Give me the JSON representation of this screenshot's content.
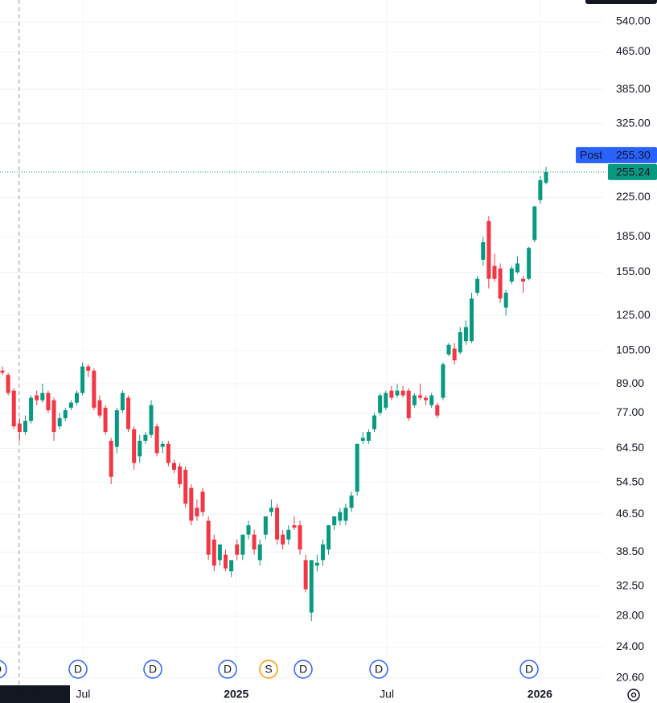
{
  "chart_data": {
    "type": "candlestick",
    "up_color": "#089981",
    "down_color": "#f23645",
    "grid": true,
    "log_scale": true,
    "ylim": [
      20,
      601
    ],
    "yticks": [
      {
        "value": 540,
        "label": "540.00"
      },
      {
        "value": 465,
        "label": "465.00"
      },
      {
        "value": 385,
        "label": "385.00"
      },
      {
        "value": 325,
        "label": "325.00"
      },
      {
        "value": 225,
        "label": "225.00"
      },
      {
        "value": 185,
        "label": "185.00"
      },
      {
        "value": 155,
        "label": "155.00"
      },
      {
        "value": 125,
        "label": "125.00"
      },
      {
        "value": 105,
        "label": "105.00"
      },
      {
        "value": 89,
        "label": "89.00"
      },
      {
        "value": 77,
        "label": "77.00"
      },
      {
        "value": 64.5,
        "label": "64.50"
      },
      {
        "value": 54.5,
        "label": "54.50"
      },
      {
        "value": 46.5,
        "label": "46.50"
      },
      {
        "value": 38.5,
        "label": "38.50"
      },
      {
        "value": 32.5,
        "label": "32.50"
      },
      {
        "value": 28,
        "label": "28.00"
      },
      {
        "value": 24,
        "label": "24.00"
      },
      {
        "value": 20.6,
        "label": "20.60"
      }
    ],
    "xlim": [
      "2024-03-23",
      "2026-03-18"
    ],
    "xticks": [
      {
        "value": "2024-07-01",
        "label": "Jul"
      },
      {
        "value": "2025-01-01",
        "label": "2025"
      },
      {
        "value": "2025-07-01",
        "label": "Jul"
      },
      {
        "value": "2026-01-01",
        "label": "2026"
      }
    ],
    "crosshair": {
      "date": "2024-04-15"
    },
    "post_market": {
      "label": "Post",
      "price": {
        "value": 255.3,
        "label": "255.30"
      }
    },
    "last_price": {
      "value": 255.24,
      "label": "255.24"
    },
    "events": [
      "D",
      "D",
      "D",
      "D",
      "S",
      "D",
      "D",
      "D"
    ],
    "candles": [
      {
        "open": 95,
        "high": 97,
        "low": 93,
        "close": 94
      },
      {
        "open": 93,
        "high": 94,
        "low": 84,
        "close": 85
      },
      {
        "open": 86,
        "high": 87,
        "low": 71,
        "close": 72
      },
      {
        "open": 73,
        "high": 75,
        "low": 67,
        "close": 70
      },
      {
        "open": 70,
        "high": 76,
        "low": 69,
        "close": 74
      },
      {
        "open": 74,
        "high": 84,
        "low": 73,
        "close": 83
      },
      {
        "open": 84,
        "high": 86,
        "low": 80,
        "close": 82
      },
      {
        "open": 82,
        "high": 89,
        "low": 81,
        "close": 85
      },
      {
        "open": 85,
        "high": 86,
        "low": 77,
        "close": 78
      },
      {
        "open": 82,
        "high": 83,
        "low": 67,
        "close": 70
      },
      {
        "open": 72,
        "high": 77,
        "low": 71,
        "close": 75
      },
      {
        "open": 75,
        "high": 79,
        "low": 74,
        "close": 78
      },
      {
        "open": 79,
        "high": 82,
        "low": 78,
        "close": 81
      },
      {
        "open": 81,
        "high": 86,
        "low": 80,
        "close": 85
      },
      {
        "open": 85,
        "high": 99,
        "low": 84,
        "close": 97
      },
      {
        "open": 97,
        "high": 98,
        "low": 92,
        "close": 95
      },
      {
        "open": 95,
        "high": 96,
        "low": 78,
        "close": 79
      },
      {
        "open": 82,
        "high": 84,
        "low": 75,
        "close": 76
      },
      {
        "open": 79,
        "high": 80,
        "low": 69,
        "close": 70
      },
      {
        "open": 67,
        "high": 68,
        "low": 54,
        "close": 56
      },
      {
        "open": 65,
        "high": 79,
        "low": 63,
        "close": 78
      },
      {
        "open": 78,
        "high": 86,
        "low": 77,
        "close": 85
      },
      {
        "open": 83,
        "high": 84,
        "low": 70,
        "close": 71
      },
      {
        "open": 71,
        "high": 72,
        "low": 58,
        "close": 60
      },
      {
        "open": 62,
        "high": 69,
        "low": 60,
        "close": 67
      },
      {
        "open": 67,
        "high": 70,
        "low": 66,
        "close": 69
      },
      {
        "open": 69,
        "high": 82,
        "low": 68,
        "close": 80
      },
      {
        "open": 72,
        "high": 73,
        "low": 62,
        "close": 63
      },
      {
        "open": 65,
        "high": 67,
        "low": 63,
        "close": 66
      },
      {
        "open": 66,
        "high": 67,
        "low": 59,
        "close": 60
      },
      {
        "open": 60,
        "high": 61,
        "low": 57,
        "close": 58
      },
      {
        "open": 59,
        "high": 60,
        "low": 53,
        "close": 54
      },
      {
        "open": 58,
        "high": 59,
        "low": 48,
        "close": 49
      },
      {
        "open": 53,
        "high": 54,
        "low": 44,
        "close": 45
      },
      {
        "open": 48,
        "high": 50,
        "low": 45,
        "close": 46
      },
      {
        "open": 52,
        "high": 53,
        "low": 46,
        "close": 47
      },
      {
        "open": 45,
        "high": 46,
        "low": 37,
        "close": 38
      },
      {
        "open": 41,
        "high": 42,
        "low": 35,
        "close": 36
      },
      {
        "open": 37,
        "high": 40,
        "low": 36,
        "close": 40
      },
      {
        "open": 38,
        "high": 39,
        "low": 35,
        "close": 35.5
      },
      {
        "open": 35,
        "high": 37,
        "low": 34,
        "close": 37
      },
      {
        "open": 40,
        "high": 41,
        "low": 37,
        "close": 38
      },
      {
        "open": 38,
        "high": 42,
        "low": 37,
        "close": 42
      },
      {
        "open": 42,
        "high": 45,
        "low": 41,
        "close": 44
      },
      {
        "open": 42,
        "high": 43,
        "low": 38,
        "close": 39
      },
      {
        "open": 37,
        "high": 41,
        "low": 36,
        "close": 40
      },
      {
        "open": 42,
        "high": 46,
        "low": 41,
        "close": 46
      },
      {
        "open": 47,
        "high": 50,
        "low": 46,
        "close": 48
      },
      {
        "open": 48,
        "high": 49,
        "low": 40,
        "close": 41
      },
      {
        "open": 42,
        "high": 43,
        "low": 39,
        "close": 40
      },
      {
        "open": 41,
        "high": 44,
        "low": 40,
        "close": 43
      },
      {
        "open": 44,
        "high": 46,
        "low": 43,
        "close": 43.5
      },
      {
        "open": 44,
        "high": 45,
        "low": 38,
        "close": 39
      },
      {
        "open": 37,
        "high": 38,
        "low": 31.5,
        "close": 32
      },
      {
        "open": 28.5,
        "high": 37,
        "low": 27.3,
        "close": 37
      },
      {
        "open": 36,
        "high": 38,
        "low": 35,
        "close": 36.5
      },
      {
        "open": 37,
        "high": 41,
        "low": 36,
        "close": 40
      },
      {
        "open": 39,
        "high": 44,
        "low": 38,
        "close": 44
      },
      {
        "open": 44,
        "high": 46,
        "low": 43,
        "close": 46
      },
      {
        "open": 45,
        "high": 48,
        "low": 44,
        "close": 47
      },
      {
        "open": 45,
        "high": 49,
        "low": 44,
        "close": 48
      },
      {
        "open": 48,
        "high": 52,
        "low": 47,
        "close": 51
      },
      {
        "open": 52,
        "high": 66,
        "low": 51,
        "close": 66
      },
      {
        "open": 67,
        "high": 70,
        "low": 66,
        "close": 68
      },
      {
        "open": 67,
        "high": 71,
        "low": 66,
        "close": 70
      },
      {
        "open": 71,
        "high": 77,
        "low": 70,
        "close": 76
      },
      {
        "open": 77,
        "high": 85,
        "low": 76,
        "close": 84
      },
      {
        "open": 79,
        "high": 86,
        "low": 78,
        "close": 85
      },
      {
        "open": 86,
        "high": 88,
        "low": 82,
        "close": 83
      },
      {
        "open": 84,
        "high": 89,
        "low": 83,
        "close": 86
      },
      {
        "open": 86,
        "high": 88,
        "low": 83,
        "close": 84
      },
      {
        "open": 86,
        "high": 87,
        "low": 74,
        "close": 75
      },
      {
        "open": 80,
        "high": 85,
        "low": 79,
        "close": 84
      },
      {
        "open": 84,
        "high": 89,
        "low": 82,
        "close": 83
      },
      {
        "open": 83,
        "high": 84,
        "low": 80,
        "close": 82
      },
      {
        "open": 80,
        "high": 85,
        "low": 79,
        "close": 84
      },
      {
        "open": 80,
        "high": 81,
        "low": 75,
        "close": 76
      },
      {
        "open": 83,
        "high": 99,
        "low": 82,
        "close": 98
      },
      {
        "open": 103,
        "high": 109,
        "low": 102,
        "close": 108
      },
      {
        "open": 106,
        "high": 109,
        "low": 98,
        "close": 100
      },
      {
        "open": 104,
        "high": 118,
        "low": 103,
        "close": 115
      },
      {
        "open": 110,
        "high": 122,
        "low": 108,
        "close": 118
      },
      {
        "open": 110,
        "high": 140,
        "low": 109,
        "close": 136
      },
      {
        "open": 140,
        "high": 152,
        "low": 138,
        "close": 150
      },
      {
        "open": 165,
        "high": 185,
        "low": 160,
        "close": 180
      },
      {
        "open": 200,
        "high": 205,
        "low": 143,
        "close": 150
      },
      {
        "open": 160,
        "high": 170,
        "low": 148,
        "close": 150
      },
      {
        "open": 158,
        "high": 162,
        "low": 133,
        "close": 136
      },
      {
        "open": 130,
        "high": 142,
        "low": 125,
        "close": 140
      },
      {
        "open": 148,
        "high": 160,
        "low": 146,
        "close": 158
      },
      {
        "open": 155,
        "high": 168,
        "low": 154,
        "close": 162
      },
      {
        "open": 150,
        "high": 152,
        "low": 140,
        "close": 148
      },
      {
        "open": 150,
        "high": 176,
        "low": 149,
        "close": 175
      },
      {
        "open": 182,
        "high": 216,
        "low": 180,
        "close": 215
      },
      {
        "open": 222,
        "high": 250,
        "low": 218,
        "close": 245
      },
      {
        "open": 242,
        "high": 262,
        "low": 240,
        "close": 255.24
      }
    ]
  }
}
